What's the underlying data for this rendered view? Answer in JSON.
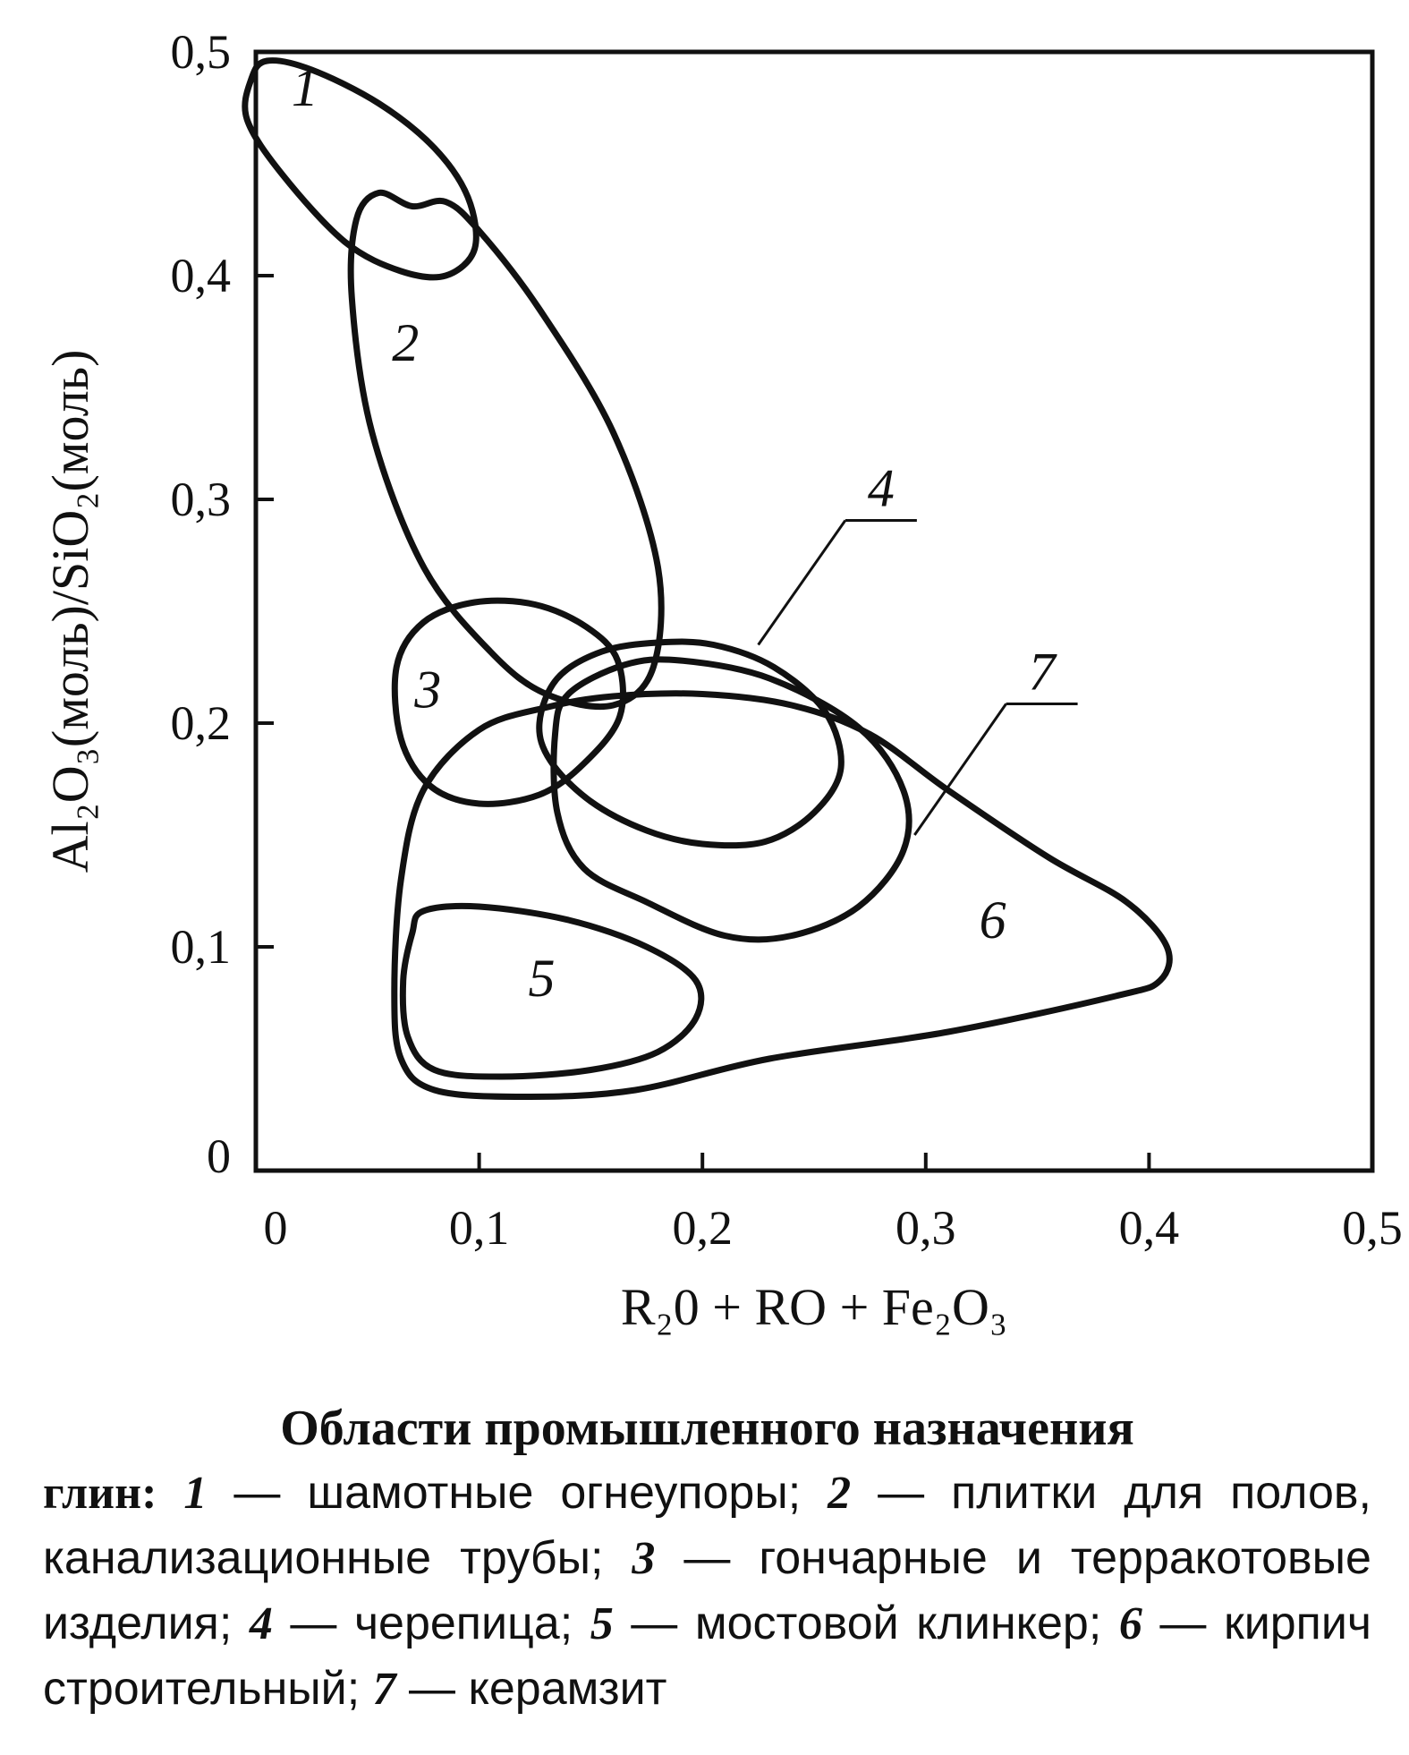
{
  "chart_data": {
    "type": "area",
    "xlim": [
      0,
      0.5
    ],
    "ylim": [
      0,
      0.5
    ],
    "x_ticks": [
      "0",
      "0,1",
      "0,2",
      "0,3",
      "0,4",
      "0,5"
    ],
    "y_ticks": [
      "0",
      "0,1",
      "0,2",
      "0,3",
      "0,4",
      "0,5"
    ],
    "x_tick_values": [
      0,
      0.1,
      0.2,
      0.3,
      0.4,
      0.5
    ],
    "y_tick_values": [
      0,
      0.1,
      0.2,
      0.3,
      0.4,
      0.5
    ],
    "xlabel": "R₂0 + RO + Fe₂O₃",
    "ylabel": "Al₂O₃(моль)/SiO₂(моль)",
    "grid": false,
    "regions": [
      {
        "label": "1",
        "label_pos": [
          0.022,
          0.476
        ],
        "points": [
          [
            0.005,
            0.496
          ],
          [
            0.025,
            0.492
          ],
          [
            0.055,
            0.477
          ],
          [
            0.08,
            0.457
          ],
          [
            0.095,
            0.435
          ],
          [
            0.098,
            0.412
          ],
          [
            0.085,
            0.4
          ],
          [
            0.065,
            0.402
          ],
          [
            0.04,
            0.415
          ],
          [
            0.012,
            0.445
          ],
          [
            -0.004,
            0.47
          ],
          [
            -0.002,
            0.488
          ]
        ]
      },
      {
        "label": "2",
        "label_pos": [
          0.067,
          0.362
        ],
        "points": [
          [
            0.07,
            0.431
          ],
          [
            0.055,
            0.437
          ],
          [
            0.045,
            0.425
          ],
          [
            0.043,
            0.39
          ],
          [
            0.052,
            0.33
          ],
          [
            0.075,
            0.27
          ],
          [
            0.105,
            0.232
          ],
          [
            0.13,
            0.213
          ],
          [
            0.16,
            0.208
          ],
          [
            0.178,
            0.225
          ],
          [
            0.18,
            0.27
          ],
          [
            0.16,
            0.33
          ],
          [
            0.127,
            0.385
          ],
          [
            0.1,
            0.42
          ],
          [
            0.085,
            0.433
          ]
        ]
      },
      {
        "label": "3",
        "label_pos": [
          0.077,
          0.207
        ],
        "points": [
          [
            0.098,
            0.254
          ],
          [
            0.075,
            0.245
          ],
          [
            0.063,
            0.225
          ],
          [
            0.065,
            0.193
          ],
          [
            0.078,
            0.172
          ],
          [
            0.1,
            0.164
          ],
          [
            0.127,
            0.168
          ],
          [
            0.147,
            0.182
          ],
          [
            0.163,
            0.203
          ],
          [
            0.162,
            0.228
          ],
          [
            0.148,
            0.243
          ],
          [
            0.125,
            0.253
          ]
        ]
      },
      {
        "label": "4",
        "label_pos": [
          0.28,
          0.297
        ],
        "label_anchor": [
          0.225,
          0.235
        ],
        "points": [
          [
            0.18,
            0.236
          ],
          [
            0.155,
            0.232
          ],
          [
            0.135,
            0.22
          ],
          [
            0.127,
            0.2
          ],
          [
            0.132,
            0.183
          ],
          [
            0.15,
            0.165
          ],
          [
            0.175,
            0.152
          ],
          [
            0.2,
            0.146
          ],
          [
            0.228,
            0.147
          ],
          [
            0.25,
            0.16
          ],
          [
            0.262,
            0.18
          ],
          [
            0.255,
            0.205
          ],
          [
            0.232,
            0.225
          ],
          [
            0.205,
            0.235
          ]
        ]
      },
      {
        "label": "5",
        "label_pos": [
          0.128,
          0.078
        ],
        "points": [
          [
            0.075,
            0.116
          ],
          [
            0.1,
            0.118
          ],
          [
            0.14,
            0.112
          ],
          [
            0.175,
            0.1
          ],
          [
            0.197,
            0.085
          ],
          [
            0.197,
            0.068
          ],
          [
            0.18,
            0.053
          ],
          [
            0.15,
            0.045
          ],
          [
            0.11,
            0.042
          ],
          [
            0.08,
            0.045
          ],
          [
            0.068,
            0.06
          ],
          [
            0.066,
            0.085
          ],
          [
            0.07,
            0.106
          ]
        ]
      },
      {
        "label": "6",
        "label_pos": [
          0.33,
          0.104
        ],
        "points": [
          [
            0.13,
            0.207
          ],
          [
            0.16,
            0.212
          ],
          [
            0.2,
            0.213
          ],
          [
            0.24,
            0.208
          ],
          [
            0.275,
            0.195
          ],
          [
            0.31,
            0.17
          ],
          [
            0.355,
            0.14
          ],
          [
            0.39,
            0.12
          ],
          [
            0.408,
            0.1
          ],
          [
            0.405,
            0.085
          ],
          [
            0.385,
            0.078
          ],
          [
            0.31,
            0.062
          ],
          [
            0.23,
            0.05
          ],
          [
            0.17,
            0.036
          ],
          [
            0.12,
            0.033
          ],
          [
            0.08,
            0.036
          ],
          [
            0.065,
            0.05
          ],
          [
            0.062,
            0.08
          ],
          [
            0.065,
            0.13
          ],
          [
            0.075,
            0.17
          ],
          [
            0.1,
            0.197
          ]
        ]
      },
      {
        "label": "7",
        "label_pos": [
          0.352,
          0.215
        ],
        "label_anchor": [
          0.295,
          0.15
        ],
        "points": [
          [
            0.19,
            0.228
          ],
          [
            0.165,
            0.226
          ],
          [
            0.14,
            0.213
          ],
          [
            0.134,
            0.195
          ],
          [
            0.135,
            0.16
          ],
          [
            0.147,
            0.135
          ],
          [
            0.175,
            0.12
          ],
          [
            0.21,
            0.105
          ],
          [
            0.24,
            0.105
          ],
          [
            0.27,
            0.118
          ],
          [
            0.29,
            0.143
          ],
          [
            0.29,
            0.17
          ],
          [
            0.27,
            0.198
          ],
          [
            0.23,
            0.22
          ]
        ]
      }
    ]
  },
  "caption": {
    "title": "Области промышленного назначения",
    "lead": "глин:",
    "items": [
      {
        "num": "1",
        "text": "шамотные огнеупоры;"
      },
      {
        "num": "2",
        "text": "плитки для полов, канализационные трубы;"
      },
      {
        "num": "3",
        "text": "гончарные и терракотовые изделия;"
      },
      {
        "num": "4",
        "text": "черепица;"
      },
      {
        "num": "5",
        "text": "мостовой клинкер;"
      },
      {
        "num": "6",
        "text": "кирпич строительный;"
      },
      {
        "num": "7",
        "text": "керамзит"
      }
    ]
  }
}
